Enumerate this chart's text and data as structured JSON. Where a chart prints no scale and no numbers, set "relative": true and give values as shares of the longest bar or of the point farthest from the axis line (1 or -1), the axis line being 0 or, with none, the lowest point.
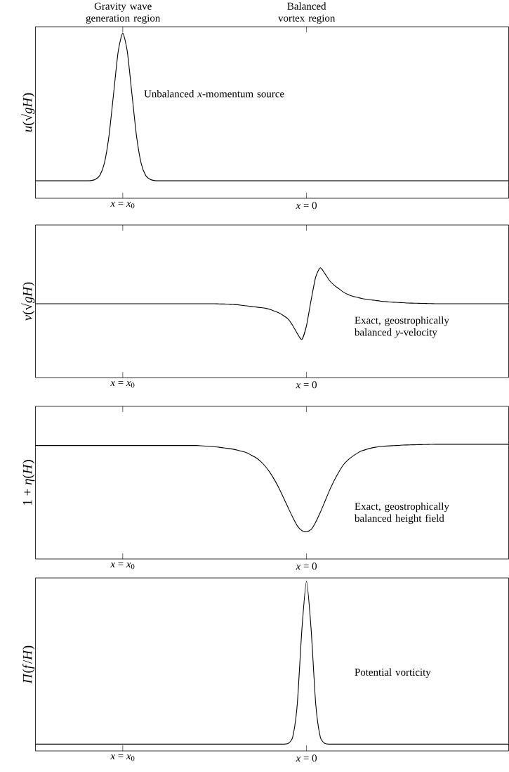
{
  "chart_data": [
    {
      "type": "line",
      "relative": true,
      "ylabel": "*u*(√*gH*)",
      "color": "#000000",
      "categories": [
        null,
        null,
        null,
        null,
        null,
        null,
        null,
        null,
        null,
        null,
        null,
        null,
        null,
        null,
        null,
        null,
        null,
        null,
        null,
        "*x* = *x*$_{0}$",
        null,
        null,
        null,
        null,
        null,
        null,
        null,
        null,
        null,
        null,
        null,
        null,
        null,
        null,
        null,
        null,
        null,
        null,
        null,
        null,
        null,
        null,
        null,
        null,
        null,
        null,
        null,
        null,
        null,
        null,
        null,
        null,
        null,
        null,
        null,
        null,
        null,
        null,
        null,
        "*x* = 0",
        null,
        null,
        null,
        null,
        null,
        null,
        null,
        null,
        null,
        null,
        null,
        null,
        null,
        null,
        null,
        null,
        null,
        null,
        null,
        null,
        null,
        null,
        null,
        null,
        null,
        null,
        null,
        null,
        null,
        null,
        null,
        null,
        null,
        null,
        null,
        null,
        null,
        null,
        null,
        null,
        null,
        null,
        null,
        null
      ],
      "values": [
        0.106,
        0.106,
        0.106,
        0.106,
        0.106,
        0.106,
        0.106,
        0.106,
        0.106,
        0.106,
        0.106,
        0.106,
        0.107,
        0.114,
        0.138,
        0.213,
        0.377,
        0.632,
        0.888,
        1,
        0.888,
        0.632,
        0.377,
        0.213,
        0.138,
        0.114,
        0.107,
        0.106,
        0.106,
        0.106,
        0.106,
        0.106,
        0.106,
        0.106,
        0.106,
        0.106,
        0.106,
        0.106,
        0.106,
        0.106,
        0.106,
        0.106,
        0.106,
        0.106,
        0.106,
        0.106,
        0.106,
        0.106,
        0.106,
        0.106,
        0.106,
        0.106,
        0.106,
        0.106,
        0.106,
        0.106,
        0.106,
        0.106,
        0.106,
        0.106,
        0.106,
        0.106,
        0.106,
        0.106,
        0.106,
        0.106,
        0.106,
        0.106,
        0.106,
        0.106,
        0.106,
        0.106,
        0.106,
        0.106,
        0.106,
        0.106,
        0.106,
        0.106,
        0.106,
        0.106,
        0.106,
        0.106,
        0.106,
        0.106,
        0.106,
        0.106,
        0.106,
        0.106,
        0.106,
        0.106,
        0.106,
        0.106,
        0.106,
        0.106,
        0.106,
        0.106,
        0.106,
        0.106,
        0.106,
        0.106,
        0.106,
        0.106,
        0.106,
        0.106
      ],
      "annotations": [
        "Gravity wave generation region",
        "Balanced vortex region",
        "Unbalanced *x*-momentum source"
      ]
    },
    {
      "type": "line",
      "relative": true,
      "ylabel": "*v*(√*gH*)",
      "color": "#000000",
      "categories": [
        null,
        null,
        null,
        null,
        null,
        null,
        null,
        null,
        null,
        null,
        null,
        null,
        null,
        null,
        null,
        null,
        null,
        null,
        null,
        "*x* = *x*$_{0}$",
        null,
        null,
        null,
        null,
        null,
        null,
        null,
        null,
        null,
        null,
        null,
        null,
        null,
        null,
        null,
        null,
        null,
        null,
        null,
        null,
        null,
        null,
        null,
        null,
        null,
        null,
        null,
        null,
        null,
        null,
        null,
        null,
        null,
        null,
        null,
        null,
        null,
        null,
        null,
        "*x* = 0",
        null,
        null,
        null,
        null,
        null,
        null,
        null,
        null,
        null,
        null,
        null,
        null,
        null,
        null,
        null,
        null,
        null,
        null,
        null,
        null,
        null,
        null,
        null,
        null,
        null,
        null,
        null,
        null,
        null,
        null,
        null,
        null,
        null,
        null,
        null,
        null,
        null,
        null,
        null,
        null,
        null,
        null,
        null,
        null
      ],
      "values": [
        0.673,
        0.673,
        0.673,
        0.673,
        0.673,
        0.673,
        0.673,
        0.673,
        0.673,
        0.673,
        0.673,
        0.673,
        0.673,
        0.673,
        0.673,
        0.673,
        0.673,
        0.673,
        0.673,
        0.673,
        0.673,
        0.673,
        0.673,
        0.673,
        0.673,
        0.673,
        0.673,
        0.673,
        0.673,
        0.673,
        0.673,
        0.673,
        0.673,
        0.673,
        0.673,
        0.673,
        0.673,
        0.673,
        0.673,
        0.673,
        0.671,
        0.67,
        0.668,
        0.666,
        0.664,
        0.658,
        0.653,
        0.648,
        0.643,
        0.637,
        0.632,
        0.622,
        0.606,
        0.59,
        0.564,
        0.532,
        0.474,
        0.401,
        0.348,
        0.474,
        0.706,
        0.916,
        1,
        0.947,
        0.884,
        0.842,
        0.811,
        0.779,
        0.758,
        0.742,
        0.732,
        0.721,
        0.714,
        0.708,
        0.703,
        0.697,
        0.693,
        0.689,
        0.686,
        0.684,
        0.682,
        0.679,
        0.678,
        0.677,
        0.676,
        0.675,
        0.674,
        0.673,
        0.673,
        0.673,
        0.673,
        0.673,
        0.673,
        0.673,
        0.673,
        0.673,
        0.673,
        0.673,
        0.673,
        0.673,
        0.673,
        0.673,
        0.673,
        0.673
      ],
      "annotations": [
        "Exact, geostrophically balanced *y*-velocity"
      ]
    },
    {
      "type": "line",
      "relative": true,
      "ylabel": "1 + *η*(*H*)",
      "color": "#000000",
      "categories": [
        null,
        null,
        null,
        null,
        null,
        null,
        null,
        null,
        null,
        null,
        null,
        null,
        null,
        null,
        null,
        null,
        null,
        null,
        null,
        "*x* = *x*$_{0}$",
        null,
        null,
        null,
        null,
        null,
        null,
        null,
        null,
        null,
        null,
        null,
        null,
        null,
        null,
        null,
        null,
        null,
        null,
        null,
        null,
        null,
        null,
        null,
        null,
        null,
        null,
        null,
        null,
        null,
        null,
        null,
        null,
        null,
        null,
        null,
        null,
        null,
        null,
        null,
        "*x* = 0",
        null,
        null,
        null,
        null,
        null,
        null,
        null,
        null,
        null,
        null,
        null,
        null,
        null,
        null,
        null,
        null,
        null,
        null,
        null,
        null,
        null,
        null,
        null,
        null,
        null,
        null,
        null,
        null,
        null,
        null,
        null,
        null,
        null,
        null,
        null,
        null,
        null,
        null,
        null,
        null,
        null,
        null,
        null,
        null
      ],
      "values": [
        0.989,
        0.989,
        0.989,
        0.989,
        0.989,
        0.989,
        0.989,
        0.989,
        0.989,
        0.989,
        0.989,
        0.989,
        0.989,
        0.989,
        0.989,
        0.989,
        0.989,
        0.989,
        0.989,
        0.989,
        0.989,
        0.989,
        0.989,
        0.989,
        0.989,
        0.989,
        0.989,
        0.989,
        0.989,
        0.989,
        0.989,
        0.989,
        0.989,
        0.989,
        0.989,
        0.989,
        0.987,
        0.984,
        0.981,
        0.978,
        0.974,
        0.968,
        0.963,
        0.957,
        0.949,
        0.938,
        0.926,
        0.904,
        0.883,
        0.851,
        0.809,
        0.756,
        0.692,
        0.618,
        0.533,
        0.448,
        0.363,
        0.289,
        0.247,
        0.239,
        0.257,
        0.321,
        0.406,
        0.501,
        0.597,
        0.682,
        0.756,
        0.82,
        0.862,
        0.894,
        0.92,
        0.942,
        0.955,
        0.966,
        0.974,
        0.979,
        0.983,
        0.986,
        0.988,
        0.99,
        0.993,
        0.994,
        0.995,
        0.996,
        0.997,
        0.998,
        0.999,
        1,
        1,
        1,
        1,
        1,
        1,
        1,
        1,
        1,
        1,
        1,
        1,
        1,
        1,
        1,
        1,
        1
      ],
      "annotations": [
        "Exact, geostrophically balanced height field"
      ]
    },
    {
      "type": "line",
      "relative": true,
      "ylabel": "*Π*(*f*/*H*)",
      "color": "#000000",
      "categories": [
        null,
        null,
        null,
        null,
        null,
        null,
        null,
        null,
        null,
        null,
        null,
        null,
        null,
        null,
        null,
        null,
        null,
        null,
        null,
        "*x* = *x*$_{0}$",
        null,
        null,
        null,
        null,
        null,
        null,
        null,
        null,
        null,
        null,
        null,
        null,
        null,
        null,
        null,
        null,
        null,
        null,
        null,
        null,
        null,
        null,
        null,
        null,
        null,
        null,
        null,
        null,
        null,
        null,
        null,
        null,
        null,
        null,
        null,
        null,
        null,
        null,
        null,
        "*x* = 0",
        null,
        null,
        null,
        null,
        null,
        null,
        null,
        null,
        null,
        null,
        null,
        null,
        null,
        null,
        null,
        null,
        null,
        null,
        null,
        null,
        null,
        null,
        null,
        null,
        null,
        null,
        null,
        null,
        null,
        null,
        null,
        null,
        null,
        null,
        null,
        null,
        null,
        null,
        null,
        null,
        null,
        null,
        null,
        null
      ],
      "values": [
        0.04,
        0.04,
        0.04,
        0.04,
        0.04,
        0.04,
        0.04,
        0.04,
        0.04,
        0.04,
        0.04,
        0.04,
        0.04,
        0.04,
        0.04,
        0.04,
        0.04,
        0.04,
        0.04,
        0.04,
        0.04,
        0.04,
        0.04,
        0.04,
        0.04,
        0.04,
        0.04,
        0.04,
        0.04,
        0.04,
        0.04,
        0.04,
        0.04,
        0.04,
        0.04,
        0.04,
        0.04,
        0.04,
        0.04,
        0.04,
        0.04,
        0.04,
        0.04,
        0.04,
        0.04,
        0.04,
        0.04,
        0.04,
        0.04,
        0.04,
        0.04,
        0.04,
        0.04,
        0.04,
        0.04,
        0.044,
        0.082,
        0.279,
        0.719,
        1,
        0.719,
        0.279,
        0.082,
        0.044,
        0.04,
        0.04,
        0.04,
        0.04,
        0.04,
        0.04,
        0.04,
        0.04,
        0.04,
        0.04,
        0.04,
        0.04,
        0.04,
        0.04,
        0.04,
        0.04,
        0.04,
        0.04,
        0.04,
        0.04,
        0.04,
        0.04,
        0.04,
        0.04,
        0.04,
        0.04,
        0.04,
        0.04,
        0.04,
        0.04,
        0.04,
        0.04,
        0.04,
        0.04,
        0.04,
        0.04,
        0.04,
        0.04,
        0.04,
        0.04
      ],
      "annotations": [
        "Potential vorticity"
      ]
    }
  ]
}
